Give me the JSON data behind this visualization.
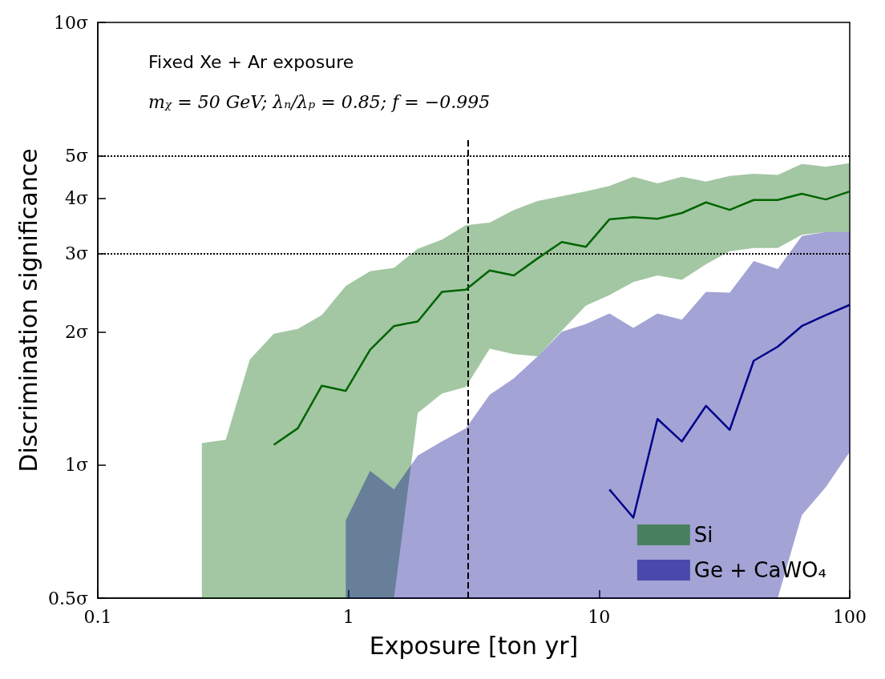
{
  "chart_data": {
    "type": "line",
    "xlabel": "Exposure [ton yr]",
    "ylabel": "Discrimination significance",
    "log": "xy",
    "grid": false,
    "legend": "bottom right",
    "marker": "none",
    "line_style": "solid",
    "xlim": [
      0.1,
      100
    ],
    "xticks": [
      0.1,
      1,
      10,
      100
    ],
    "ylim": [
      0.5,
      10
    ],
    "yticks": [
      {
        "value": 0.5,
        "label": "0.5σ"
      },
      {
        "value": 1,
        "label": "1σ"
      },
      {
        "value": 2,
        "label": "2σ"
      },
      {
        "value": 3,
        "label": "3σ"
      },
      {
        "value": 4,
        "label": "4σ"
      },
      {
        "value": 5,
        "label": "5σ"
      },
      {
        "value": 10,
        "label": "10σ"
      }
    ],
    "x": [
      0.26,
      0.324,
      0.404,
      0.504,
      0.628,
      0.783,
      0.976,
      1.22,
      1.52,
      1.89,
      2.36,
      2.94,
      3.66,
      4.57,
      5.69,
      7.1,
      8.85,
      11.0,
      13.7,
      17.1,
      21.4,
      26.7,
      33.2,
      41.4,
      51.6,
      64.4,
      80.2,
      100
    ],
    "series": [
      {
        "name": "Si",
        "color": "#006400",
        "values": [
          null,
          null,
          null,
          1.11,
          1.21,
          1.51,
          1.47,
          1.82,
          2.06,
          2.11,
          2.46,
          2.49,
          2.75,
          2.68,
          2.93,
          3.19,
          3.11,
          3.59,
          3.63,
          3.6,
          3.71,
          3.92,
          3.77,
          3.97,
          3.97,
          4.1,
          3.98,
          4.15
        ],
        "upper": [
          1.12,
          1.14,
          1.73,
          1.98,
          2.03,
          2.18,
          2.54,
          2.74,
          2.79,
          3.08,
          3.23,
          3.48,
          3.53,
          3.77,
          3.95,
          4.05,
          4.15,
          4.27,
          4.48,
          4.33,
          4.48,
          4.37,
          4.5,
          4.55,
          4.52,
          4.79,
          4.72,
          4.81
        ],
        "lower": [
          0.5,
          0.5,
          0.5,
          0.5,
          0.5,
          0.5,
          0.5,
          0.5,
          0.5,
          1.31,
          1.45,
          1.5,
          1.83,
          1.78,
          1.76,
          2.01,
          2.29,
          2.42,
          2.59,
          2.68,
          2.62,
          2.84,
          3.04,
          3.09,
          3.09,
          3.31,
          3.36,
          3.36
        ]
      },
      {
        "name": "Ge + CaWO₄",
        "color": "#00008b",
        "values": [
          null,
          null,
          null,
          null,
          null,
          null,
          null,
          null,
          null,
          null,
          null,
          null,
          null,
          null,
          null,
          null,
          null,
          0.88,
          0.76,
          1.27,
          1.13,
          1.36,
          1.2,
          1.72,
          1.85,
          2.06,
          2.18,
          2.3
        ],
        "upper": [
          null,
          null,
          null,
          null,
          null,
          null,
          0.75,
          0.97,
          0.88,
          1.05,
          1.13,
          1.21,
          1.44,
          1.57,
          1.76,
          2.0,
          2.08,
          2.2,
          2.04,
          2.2,
          2.13,
          2.46,
          2.45,
          2.89,
          2.77,
          3.29,
          3.36,
          3.36
        ],
        "lower": [
          null,
          null,
          null,
          null,
          null,
          null,
          0.5,
          0.5,
          0.5,
          0.5,
          0.5,
          0.5,
          0.5,
          0.5,
          0.5,
          0.5,
          0.5,
          0.5,
          0.5,
          0.5,
          0.5,
          0.5,
          0.5,
          0.5,
          0.5,
          0.77,
          0.89,
          1.07
        ]
      }
    ],
    "ref_lines": [
      {
        "axis": "y",
        "value": 5,
        "line_style": "dotted"
      },
      {
        "axis": "y",
        "value": 3,
        "line_style": "dotted"
      },
      {
        "axis": "x",
        "value": 3,
        "line_style": "dashed"
      }
    ],
    "annotations": [
      "Fixed Xe + Ar exposure",
      "mᵪ = 50 GeV; λₙ/λₚ = 0.85; f = −0.995"
    ]
  }
}
